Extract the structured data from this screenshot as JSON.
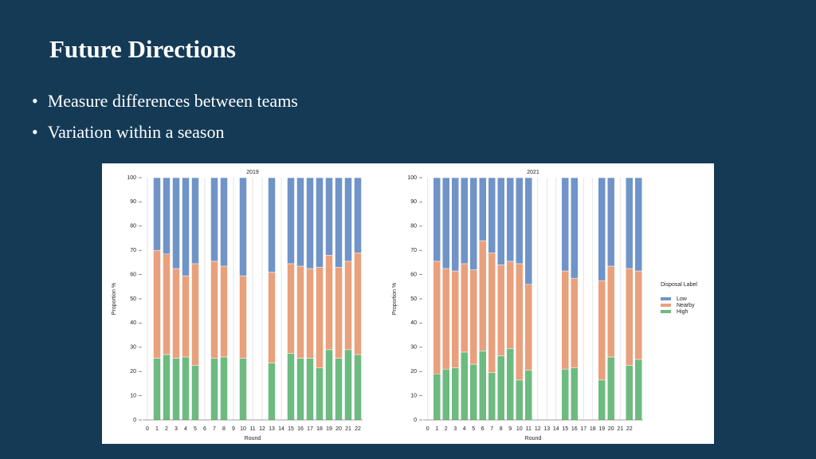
{
  "slide": {
    "title": "Future Directions",
    "bullets": [
      "Measure differences between teams",
      "Variation within a season"
    ]
  },
  "chart_data": [
    {
      "type": "bar",
      "stacked": true,
      "title": "2019",
      "xlabel": "Round",
      "ylabel": "Proportion %",
      "categories": [
        0,
        1,
        2,
        3,
        4,
        5,
        6,
        7,
        8,
        9,
        10,
        11,
        12,
        13,
        14,
        15,
        16,
        17,
        18,
        19,
        20,
        21,
        22
      ],
      "series": [
        {
          "name": "Low",
          "color": "#7094c8",
          "values": [
            null,
            30,
            31.5,
            37.5,
            40.5,
            35.5,
            null,
            34.5,
            36.5,
            null,
            40.5,
            null,
            null,
            39,
            null,
            35.5,
            36.5,
            37.5,
            37,
            32,
            37,
            34.5,
            31
          ]
        },
        {
          "name": "Nearby",
          "color": "#e9a07c",
          "values": [
            null,
            44.5,
            41.5,
            37,
            33.5,
            42,
            null,
            40,
            37.5,
            null,
            34,
            null,
            null,
            37.5,
            null,
            37,
            38,
            37,
            41.5,
            39,
            37.5,
            36.5,
            42
          ]
        },
        {
          "name": "High",
          "color": "#6dbb80",
          "values": [
            null,
            25.5,
            27,
            25.5,
            26,
            22.5,
            null,
            25.5,
            26,
            null,
            25.5,
            null,
            null,
            23.5,
            null,
            27.5,
            25.5,
            25.5,
            21.5,
            29,
            25.5,
            29,
            27
          ]
        }
      ],
      "ylim": [
        0,
        100
      ],
      "yticks": [
        0,
        10,
        20,
        30,
        40,
        50,
        60,
        70,
        80,
        90,
        100
      ],
      "grid": true,
      "legend": false
    },
    {
      "type": "bar",
      "stacked": true,
      "title": "2021",
      "xlabel": "Round",
      "ylabel": "Proportion %",
      "categories": [
        0,
        1,
        2,
        3,
        4,
        5,
        6,
        7,
        8,
        9,
        10,
        11,
        12,
        13,
        14,
        15,
        16,
        17,
        18,
        19,
        20,
        21,
        22,
        null
      ],
      "series": [
        {
          "name": "Low",
          "color": "#7094c8",
          "values": [
            null,
            34.5,
            37.5,
            38.5,
            35.5,
            38,
            26,
            31,
            36,
            34.5,
            35.5,
            44,
            null,
            null,
            null,
            38.5,
            41.5,
            null,
            null,
            42.5,
            36.5,
            null,
            37.5,
            38.5
          ]
        },
        {
          "name": "Nearby",
          "color": "#e9a07c",
          "values": [
            null,
            46.5,
            41.5,
            40,
            36.5,
            39,
            45.5,
            49.5,
            37.5,
            36,
            48,
            35.5,
            null,
            null,
            null,
            40.5,
            37,
            null,
            null,
            41,
            37.5,
            null,
            40,
            36.5
          ]
        },
        {
          "name": "High",
          "color": "#6dbb80",
          "values": [
            null,
            19,
            21,
            21.5,
            28,
            23,
            28.5,
            19.5,
            26.5,
            29.5,
            16.5,
            20.5,
            null,
            null,
            null,
            21,
            21.5,
            null,
            null,
            16.5,
            26,
            null,
            22.5,
            25
          ]
        }
      ],
      "ylim": [
        0,
        100
      ],
      "yticks": [
        0,
        10,
        20,
        30,
        40,
        50,
        60,
        70,
        80,
        90,
        100
      ],
      "grid": true,
      "legend": "right",
      "legend_title": "Disposal Label"
    }
  ]
}
